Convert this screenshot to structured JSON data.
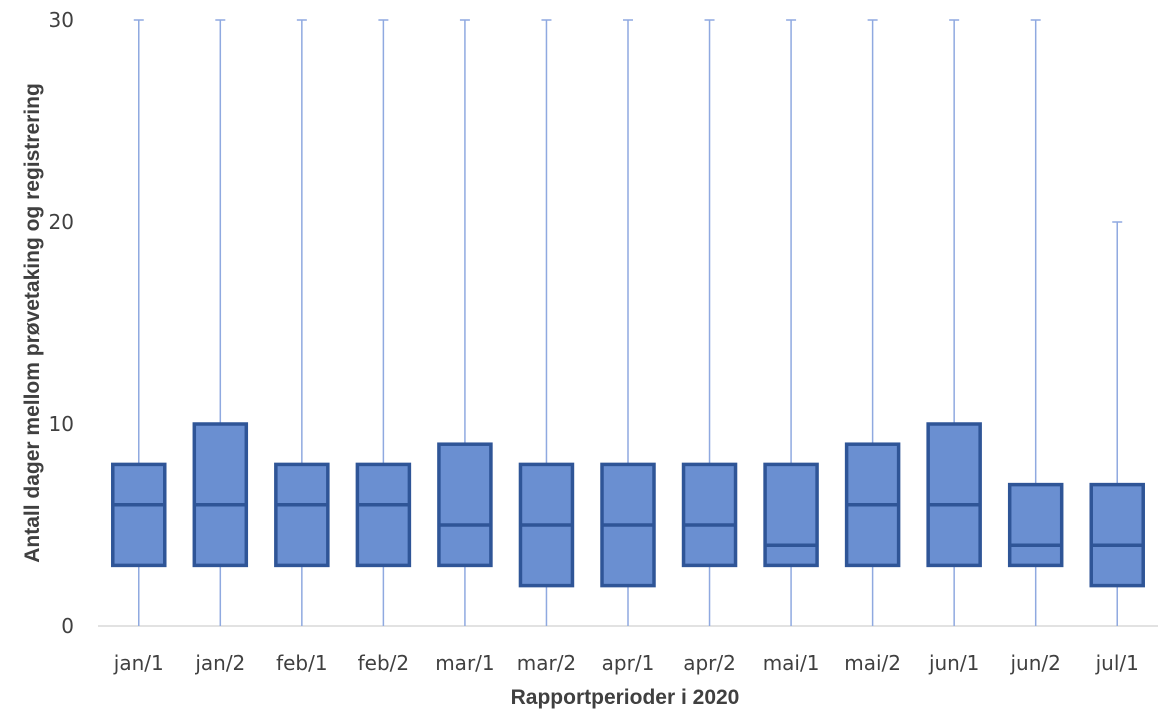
{
  "chart_data": {
    "type": "box",
    "title": "",
    "xlabel": "Rapportperioder i 2020",
    "ylabel": "Antall dager mellom prøvetaking og registrering",
    "ylim": [
      0,
      30
    ],
    "yticks": [
      0,
      10,
      20,
      30
    ],
    "grid": "horizontal at 0 only",
    "legend": "none",
    "colors": {
      "box_fill": "#6a8fd1",
      "box_edge": "#2f5597",
      "whisker": "#8fa9e0",
      "axis": "#d9d9d9",
      "text": "#404040"
    },
    "categories": [
      "jan/1",
      "jan/2",
      "feb/1",
      "feb/2",
      "mar/1",
      "mar/2",
      "apr/1",
      "apr/2",
      "mai/1",
      "mai/2",
      "jun/1",
      "jun/2",
      "jul/1"
    ],
    "boxes": [
      {
        "category": "jan/1",
        "whisker_low": 0,
        "q1": 3,
        "median": 6,
        "q3": 8,
        "whisker_high": 30
      },
      {
        "category": "jan/2",
        "whisker_low": 0,
        "q1": 3,
        "median": 6,
        "q3": 10,
        "whisker_high": 30
      },
      {
        "category": "feb/1",
        "whisker_low": 0,
        "q1": 3,
        "median": 6,
        "q3": 8,
        "whisker_high": 30
      },
      {
        "category": "feb/2",
        "whisker_low": 0,
        "q1": 3,
        "median": 6,
        "q3": 8,
        "whisker_high": 30
      },
      {
        "category": "mar/1",
        "whisker_low": 0,
        "q1": 3,
        "median": 5,
        "q3": 9,
        "whisker_high": 30
      },
      {
        "category": "mar/2",
        "whisker_low": 0,
        "q1": 2,
        "median": 5,
        "q3": 8,
        "whisker_high": 30
      },
      {
        "category": "apr/1",
        "whisker_low": 0,
        "q1": 2,
        "median": 5,
        "q3": 8,
        "whisker_high": 30
      },
      {
        "category": "apr/2",
        "whisker_low": 0,
        "q1": 3,
        "median": 5,
        "q3": 8,
        "whisker_high": 30
      },
      {
        "category": "mai/1",
        "whisker_low": 0,
        "q1": 3,
        "median": 4,
        "q3": 8,
        "whisker_high": 30
      },
      {
        "category": "mai/2",
        "whisker_low": 0,
        "q1": 3,
        "median": 6,
        "q3": 9,
        "whisker_high": 30
      },
      {
        "category": "jun/1",
        "whisker_low": 0,
        "q1": 3,
        "median": 6,
        "q3": 10,
        "whisker_high": 30
      },
      {
        "category": "jun/2",
        "whisker_low": 0,
        "q1": 3,
        "median": 4,
        "q3": 7,
        "whisker_high": 30
      },
      {
        "category": "jul/1",
        "whisker_low": 0,
        "q1": 2,
        "median": 4,
        "q3": 7,
        "whisker_high": 20
      }
    ]
  }
}
